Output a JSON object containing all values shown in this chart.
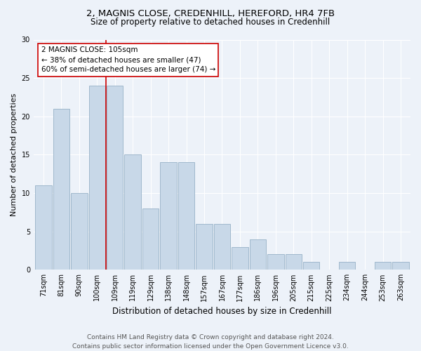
{
  "title": "2, MAGNIS CLOSE, CREDENHILL, HEREFORD, HR4 7FB",
  "subtitle": "Size of property relative to detached houses in Credenhill",
  "xlabel": "Distribution of detached houses by size in Credenhill",
  "ylabel": "Number of detached properties",
  "bar_labels": [
    "71sqm",
    "81sqm",
    "90sqm",
    "100sqm",
    "109sqm",
    "119sqm",
    "129sqm",
    "138sqm",
    "148sqm",
    "157sqm",
    "167sqm",
    "177sqm",
    "186sqm",
    "196sqm",
    "205sqm",
    "215sqm",
    "225sqm",
    "234sqm",
    "244sqm",
    "253sqm",
    "263sqm"
  ],
  "bar_values": [
    11,
    21,
    10,
    24,
    24,
    15,
    8,
    14,
    14,
    6,
    6,
    3,
    4,
    2,
    2,
    1,
    0,
    1,
    0,
    1,
    1
  ],
  "bar_color": "#c8d8e8",
  "bar_edgecolor": "#a0b8cc",
  "background_color": "#edf2f9",
  "vline_color": "#cc0000",
  "annotation_text": "2 MAGNIS CLOSE: 105sqm\n← 38% of detached houses are smaller (47)\n60% of semi-detached houses are larger (74) →",
  "annotation_box_facecolor": "#ffffff",
  "annotation_box_edgecolor": "#cc0000",
  "ylim": [
    0,
    30
  ],
  "yticks": [
    0,
    5,
    10,
    15,
    20,
    25,
    30
  ],
  "title_fontsize": 9.5,
  "subtitle_fontsize": 8.5,
  "xlabel_fontsize": 8.5,
  "ylabel_fontsize": 8,
  "tick_fontsize": 7,
  "annotation_fontsize": 7.5,
  "footer_fontsize": 6.5,
  "footer": "Contains HM Land Registry data © Crown copyright and database right 2024.\nContains public sector information licensed under the Open Government Licence v3.0."
}
